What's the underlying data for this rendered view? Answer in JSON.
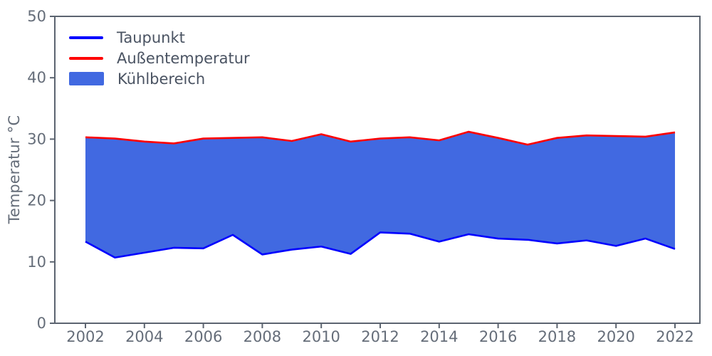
{
  "chart_data": {
    "type": "area",
    "title": "",
    "ylabel": "Temperatur °C",
    "xlabel": "",
    "x": [
      2002,
      2003,
      2004,
      2005,
      2006,
      2007,
      2008,
      2009,
      2010,
      2011,
      2012,
      2013,
      2014,
      2015,
      2016,
      2017,
      2018,
      2019,
      2020,
      2021,
      2022
    ],
    "series": [
      {
        "name": "Taupunkt",
        "color": "#0000ff",
        "values": [
          13.3,
          10.7,
          11.5,
          12.3,
          12.2,
          14.4,
          11.2,
          12.0,
          12.5,
          11.3,
          14.8,
          14.6,
          13.3,
          14.5,
          13.8,
          13.6,
          13.0,
          13.5,
          12.6,
          13.8,
          12.1
        ]
      },
      {
        "name": "Außentemperatur",
        "color": "#ff0000",
        "values": [
          30.3,
          30.1,
          29.6,
          29.3,
          30.1,
          30.2,
          30.3,
          29.7,
          30.8,
          29.6,
          30.1,
          30.3,
          29.8,
          31.2,
          30.2,
          29.1,
          30.2,
          30.6,
          30.5,
          30.4,
          31.1
        ]
      }
    ],
    "area": {
      "name": "Kühlbereich",
      "between": [
        "Taupunkt",
        "Außentemperatur"
      ],
      "color": "#4169e1"
    },
    "ylim": [
      0,
      50
    ],
    "yticks": [
      0,
      10,
      20,
      30,
      40,
      50
    ],
    "xticks": [
      2002,
      2004,
      2006,
      2008,
      2010,
      2012,
      2014,
      2016,
      2018,
      2020,
      2022
    ],
    "grid": false,
    "legend": {
      "position": "upper-left",
      "entries": [
        {
          "label": "Taupunkt",
          "swatch": "line",
          "color": "#0000ff"
        },
        {
          "label": "Außentemperatur",
          "swatch": "line",
          "color": "#ff0000"
        },
        {
          "label": "Kühlbereich",
          "swatch": "patch",
          "color": "#4169e1"
        }
      ]
    },
    "axis": {
      "spine_color": "#5c6470",
      "tick_label_color": "#656d79",
      "legend_text_color": "#4a5362",
      "tick_font_size": 21,
      "ylabel_font_size": 21
    }
  }
}
